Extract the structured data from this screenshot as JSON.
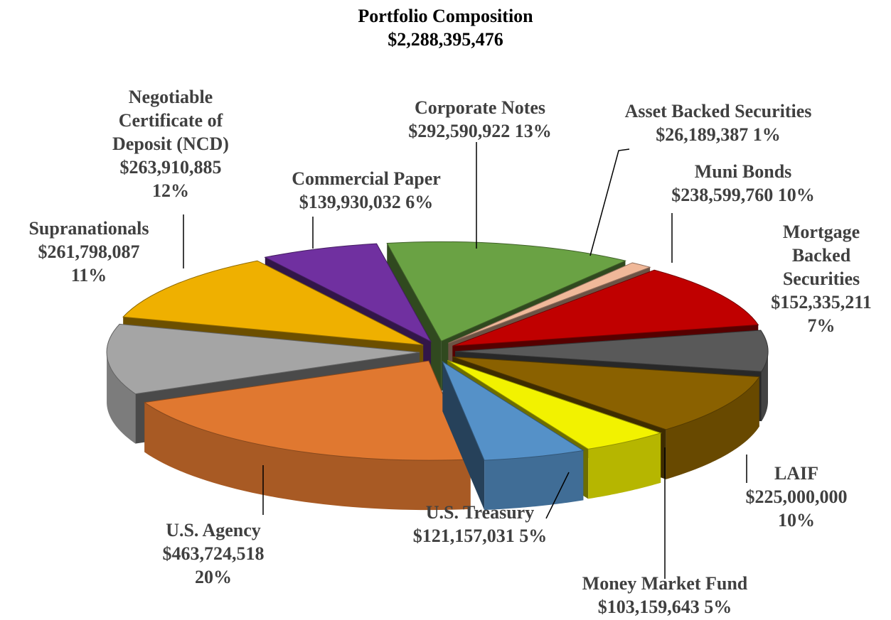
{
  "chart_data": {
    "type": "pie3d",
    "title": "Portfolio Composition",
    "subtitle": "$2,288,395,476",
    "categories": [
      "Corporate Notes",
      "Asset Backed Securities",
      "Muni Bonds",
      "Mortgage Backed Securities",
      "LAIF",
      "Money Market Fund",
      "U.S. Treasury",
      "U.S. Agency",
      "Supranationals",
      "Negotiable Certificate of Deposit (NCD)",
      "Commercial Paper"
    ],
    "values": [
      292590922,
      26189387,
      238599760,
      152335211,
      225000000,
      103159643,
      121157031,
      463724518,
      261798087,
      263910885,
      139930032
    ],
    "value_labels": [
      "$292,590,922",
      "$26,189,387",
      "$238,599,760",
      "$152,335,211",
      "$225,000,000",
      "$103,159,643",
      "$121,157,031",
      "$463,724,518",
      "$261,798,087",
      "$263,910,885",
      "$139,930,032"
    ],
    "percent_labels": [
      "13%",
      "1%",
      "10%",
      "7%",
      "10%",
      "5%",
      "5%",
      "20%",
      "11%",
      "12%",
      "6%"
    ],
    "colors": [
      "#6aa244",
      "#f0b899",
      "#c00000",
      "#595959",
      "#8a6100",
      "#f2f200",
      "#5591c8",
      "#e07830",
      "#a5a5a5",
      "#efb000",
      "#7030a0"
    ]
  }
}
